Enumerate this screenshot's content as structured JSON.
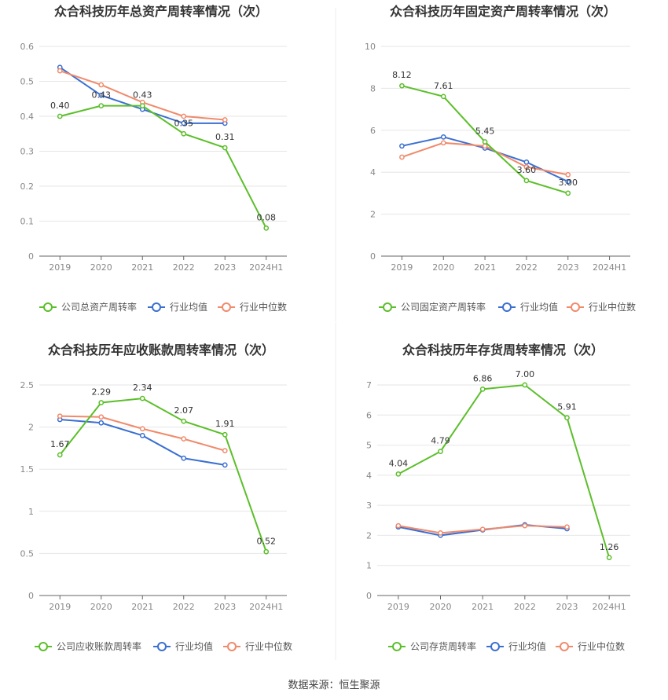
{
  "colors": {
    "company": "#5bbf2a",
    "industry_avg": "#3a6fd1",
    "industry_median": "#f08a6b",
    "grid": "#e6e6e6",
    "axis": "#666666",
    "divider": "#eeeeee"
  },
  "source": "数据来源：恒生聚源",
  "chart_data": [
    {
      "type": "line",
      "title": "众合科技历年总资产周转率情况（次）",
      "categories": [
        "2019",
        "2020",
        "2021",
        "2022",
        "2023",
        "2024H1"
      ],
      "ylim": [
        0,
        0.6
      ],
      "yticks": [
        "0",
        "0.1",
        "0.2",
        "0.3",
        "0.4",
        "0.5",
        "0.6"
      ],
      "grid": true,
      "legend_position": "bottom",
      "series": [
        {
          "name": "公司总资产周转率",
          "role": "company",
          "values": [
            0.4,
            0.43,
            0.43,
            0.35,
            0.31,
            0.08
          ],
          "labels": [
            "0.40",
            "0.43",
            "0.43",
            "0.35",
            "0.31",
            "0.08"
          ]
        },
        {
          "name": "行业均值",
          "role": "industry_avg",
          "values": [
            0.54,
            0.46,
            0.42,
            0.38,
            0.38,
            null
          ]
        },
        {
          "name": "行业中位数",
          "role": "industry_median",
          "values": [
            0.53,
            0.49,
            0.44,
            0.4,
            0.39,
            null
          ]
        }
      ]
    },
    {
      "type": "line",
      "title": "众合科技历年固定资产周转率情况（次）",
      "categories": [
        "2019",
        "2020",
        "2021",
        "2022",
        "2023",
        "2024H1"
      ],
      "ylim": [
        0,
        10
      ],
      "yticks": [
        "0",
        "2",
        "4",
        "6",
        "8",
        "10"
      ],
      "grid": true,
      "legend_position": "bottom",
      "series": [
        {
          "name": "公司固定资产周转率",
          "role": "company",
          "values": [
            8.12,
            7.61,
            5.45,
            3.6,
            3.0,
            null
          ],
          "labels": [
            "8.12",
            "7.61",
            "5.45",
            "3.60",
            "3.00",
            ""
          ]
        },
        {
          "name": "行业均值",
          "role": "industry_avg",
          "values": [
            5.25,
            5.68,
            5.15,
            4.48,
            3.55,
            null
          ]
        },
        {
          "name": "行业中位数",
          "role": "industry_median",
          "values": [
            4.72,
            5.4,
            5.25,
            4.25,
            3.88,
            null
          ]
        }
      ]
    },
    {
      "type": "line",
      "title": "众合科技历年应收账款周转率情况（次）",
      "categories": [
        "2019",
        "2020",
        "2021",
        "2022",
        "2023",
        "2024H1"
      ],
      "ylim": [
        0,
        2.5
      ],
      "yticks": [
        "0",
        "0.5",
        "1",
        "1.5",
        "2",
        "2.5"
      ],
      "grid": true,
      "legend_position": "bottom",
      "series": [
        {
          "name": "公司应收账款周转率",
          "role": "company",
          "values": [
            1.67,
            2.29,
            2.34,
            2.07,
            1.91,
            0.52
          ],
          "labels": [
            "1.67",
            "2.29",
            "2.34",
            "2.07",
            "1.91",
            "0.52"
          ]
        },
        {
          "name": "行业均值",
          "role": "industry_avg",
          "values": [
            2.09,
            2.05,
            1.9,
            1.63,
            1.55,
            null
          ]
        },
        {
          "name": "行业中位数",
          "role": "industry_median",
          "values": [
            2.13,
            2.12,
            1.98,
            1.86,
            1.72,
            null
          ]
        }
      ]
    },
    {
      "type": "line",
      "title": "众合科技历年存货周转率情况（次）",
      "categories": [
        "2019",
        "2020",
        "2021",
        "2022",
        "2023",
        "2024H1"
      ],
      "ylim": [
        0,
        7
      ],
      "yticks": [
        "0",
        "1",
        "2",
        "3",
        "4",
        "5",
        "6",
        "7"
      ],
      "grid": true,
      "legend_position": "bottom",
      "series": [
        {
          "name": "公司存货周转率",
          "role": "company",
          "values": [
            4.04,
            4.79,
            6.86,
            7.0,
            5.91,
            1.26
          ],
          "labels": [
            "4.04",
            "4.79",
            "6.86",
            "7.00",
            "5.91",
            "1.26"
          ]
        },
        {
          "name": "行业均值",
          "role": "industry_avg",
          "values": [
            2.28,
            2.0,
            2.18,
            2.35,
            2.22,
            null
          ]
        },
        {
          "name": "行业中位数",
          "role": "industry_median",
          "values": [
            2.32,
            2.08,
            2.2,
            2.32,
            2.28,
            null
          ]
        }
      ]
    }
  ]
}
